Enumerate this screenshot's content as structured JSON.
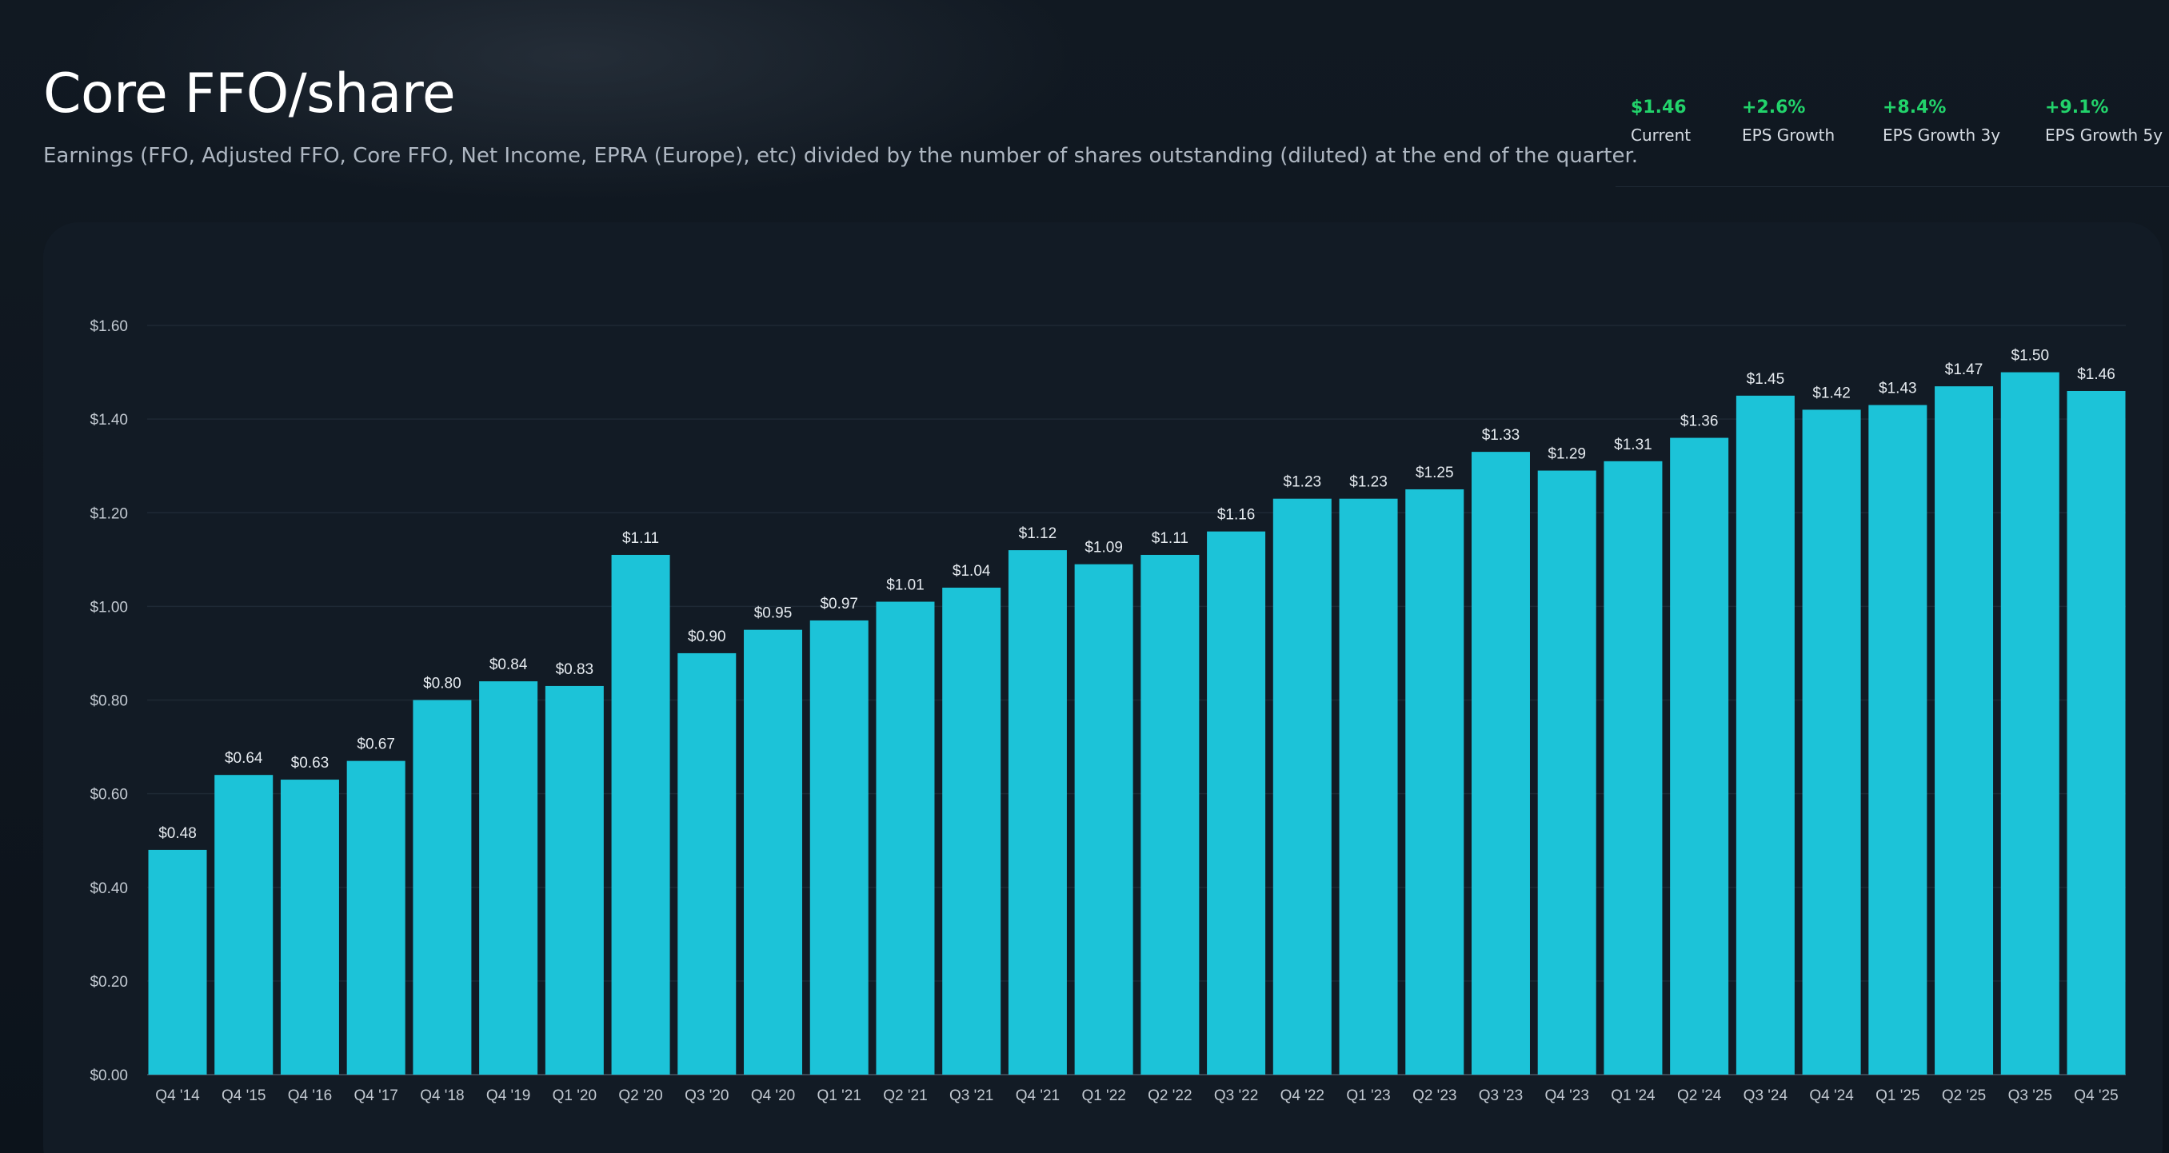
{
  "header": {
    "title": "Core FFO/share",
    "subtitle": "Earnings (FFO, Adjusted FFO, Core FFO, Net Income, EPRA (Europe), etc) divided by the number of shares outstanding (diluted) at the end of the quarter."
  },
  "stats": [
    {
      "value": "$1.46",
      "label": "Current"
    },
    {
      "value": "+2.6%",
      "label": "EPS Growth"
    },
    {
      "value": "+8.4%",
      "label": "EPS Growth 3y"
    },
    {
      "value": "+9.1%",
      "label": "EPS Growth 5y"
    }
  ],
  "colors": {
    "bar": "#1cc3d8",
    "positive": "#22d36b",
    "grid": "#1e2935",
    "axis_text": "#c3cad2"
  },
  "chart_data": {
    "type": "bar",
    "title": "",
    "xlabel": "",
    "ylabel": "",
    "ylim": [
      0,
      1.6
    ],
    "yticks": [
      0,
      0.2,
      0.4,
      0.6,
      0.8,
      1.0,
      1.2,
      1.4,
      1.6
    ],
    "ytick_labels": [
      "$0.00",
      "$0.20",
      "$0.40",
      "$0.60",
      "$0.80",
      "$1.00",
      "$1.20",
      "$1.40",
      "$1.60"
    ],
    "grid": true,
    "categories": [
      "Q4 '14",
      "Q4 '15",
      "Q4 '16",
      "Q4 '17",
      "Q4 '18",
      "Q4 '19",
      "Q1 '20",
      "Q2 '20",
      "Q3 '20",
      "Q4 '20",
      "Q1 '21",
      "Q2 '21",
      "Q3 '21",
      "Q4 '21",
      "Q1 '22",
      "Q2 '22",
      "Q3 '22",
      "Q4 '22",
      "Q1 '23",
      "Q2 '23",
      "Q3 '23",
      "Q4 '23",
      "Q1 '24",
      "Q2 '24",
      "Q3 '24",
      "Q4 '24",
      "Q1 '25",
      "Q2 '25",
      "Q3 '25",
      "Q4 '25"
    ],
    "values": [
      0.48,
      0.64,
      0.63,
      0.67,
      0.8,
      0.84,
      0.83,
      1.11,
      0.9,
      0.95,
      0.97,
      1.01,
      1.04,
      1.12,
      1.09,
      1.11,
      1.16,
      1.23,
      1.23,
      1.25,
      1.33,
      1.29,
      1.31,
      1.36,
      1.45,
      1.42,
      1.43,
      1.47,
      1.5,
      1.46
    ],
    "data_labels": [
      "$0.48",
      "$0.64",
      "$0.63",
      "$0.67",
      "$0.80",
      "$0.84",
      "$0.83",
      "$1.11",
      "$0.90",
      "$0.95",
      "$0.97",
      "$1.01",
      "$1.04",
      "$1.12",
      "$1.09",
      "$1.11",
      "$1.16",
      "$1.23",
      "$1.23",
      "$1.25",
      "$1.33",
      "$1.29",
      "$1.31",
      "$1.36",
      "$1.45",
      "$1.42",
      "$1.43",
      "$1.47",
      "$1.50",
      "$1.46"
    ]
  }
}
